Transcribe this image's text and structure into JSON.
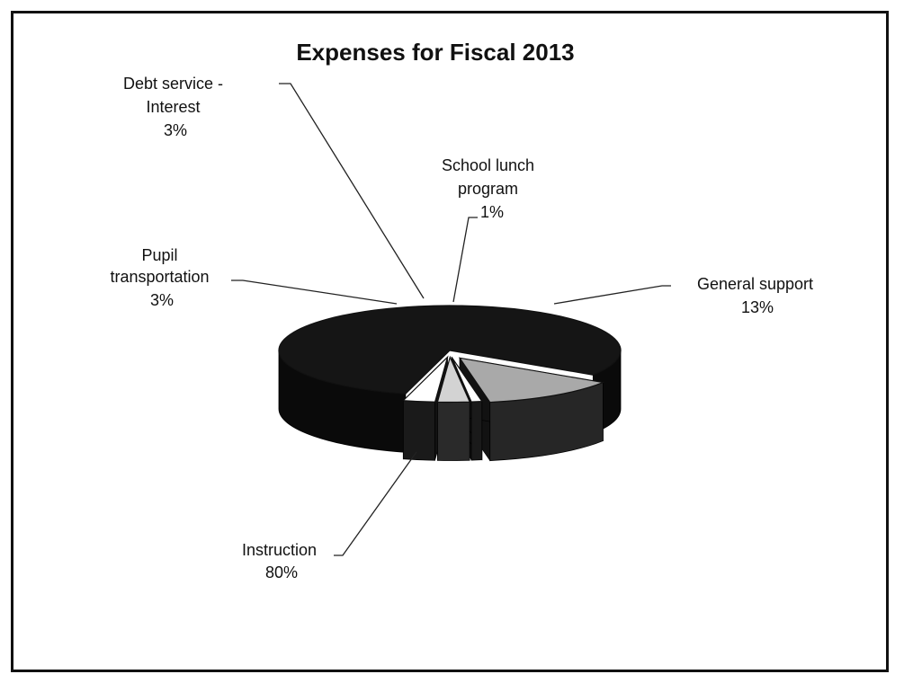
{
  "chart_data": {
    "type": "pie",
    "title": "Expenses for Fiscal 2013",
    "three_d": true,
    "legend": "none",
    "slices": [
      {
        "name": "Instruction",
        "value": 80,
        "label": "80%",
        "color": "#151515"
      },
      {
        "name": "General support",
        "value": 13,
        "label": "13%",
        "color": "#a9a9a9"
      },
      {
        "name": "School lunch program",
        "value": 1,
        "label": "1%",
        "color": "#ffffff"
      },
      {
        "name": "Debt service - Interest",
        "value": 3,
        "label": "3%",
        "color": "#d3d3d3"
      },
      {
        "name": "Pupil transportation",
        "value": 3,
        "label": "3%",
        "color": "#ffffff"
      }
    ]
  },
  "labels": {
    "debt": {
      "line1": "Debt service -",
      "line2": "Interest",
      "pct": "3%"
    },
    "lunch": {
      "line1": "School lunch",
      "line2": "program",
      "pct": "1%"
    },
    "pupil": {
      "line1": "Pupil",
      "line2": "transportation",
      "pct": "3%"
    },
    "general": {
      "line1": "General support",
      "pct": "13%"
    },
    "instruction": {
      "line1": "Instruction",
      "pct": "80%"
    }
  }
}
